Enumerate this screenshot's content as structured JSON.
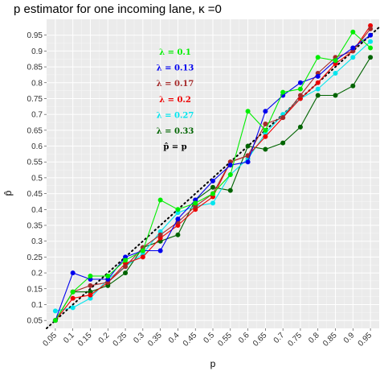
{
  "chart_data": {
    "type": "line",
    "title": "p estimator for one incoming lane, κ =0",
    "xlabel": "p",
    "ylabel": "p̂",
    "xlim": [
      0.025,
      0.975
    ],
    "ylim": [
      0.025,
      1.0
    ],
    "x_ticks": [
      0.05,
      0.1,
      0.15,
      0.2,
      0.25,
      0.3,
      0.35,
      0.4,
      0.45,
      0.5,
      0.55,
      0.6,
      0.65,
      0.7,
      0.75,
      0.8,
      0.85,
      0.9,
      0.95
    ],
    "x_tick_labels": [
      "0.05",
      "0.1",
      "0.15",
      "0.2",
      "0.25",
      "0.3",
      "0.35",
      "0.4",
      "0.45",
      "0.5",
      "0.55",
      "0.6",
      "0.65",
      "0.7",
      "0.75",
      "0.8",
      "0.85",
      "0.9",
      "0.95"
    ],
    "y_ticks": [
      0.05,
      0.1,
      0.15,
      0.2,
      0.25,
      0.3,
      0.35,
      0.4,
      0.45,
      0.5,
      0.55,
      0.6,
      0.65,
      0.7,
      0.75,
      0.8,
      0.85,
      0.9,
      0.95
    ],
    "y_tick_labels": [
      "0.05",
      "0.1",
      "0.15",
      "0.2",
      "0.25",
      "0.3",
      "0.35",
      "0.4",
      "0.45",
      "0.5",
      "0.55",
      "0.6",
      "0.65",
      "0.7",
      "0.75",
      "0.8",
      "0.85",
      "0.9",
      "0.95"
    ],
    "grid": true,
    "legend_placement": "top-center",
    "x": [
      0.05,
      0.1,
      0.15,
      0.2,
      0.25,
      0.3,
      0.35,
      0.4,
      0.45,
      0.5,
      0.55,
      0.6,
      0.65,
      0.7,
      0.75,
      0.8,
      0.85,
      0.9,
      0.95
    ],
    "series": [
      {
        "name": "λ = 0.33",
        "color": "#006400",
        "values": [
          0.05,
          0.14,
          0.14,
          0.16,
          0.2,
          0.28,
          0.3,
          0.32,
          0.43,
          0.47,
          0.46,
          0.6,
          0.59,
          0.61,
          0.66,
          0.76,
          0.76,
          0.79,
          0.88
        ]
      },
      {
        "name": "λ = 0.27",
        "color": "#00e5ee",
        "values": [
          0.08,
          0.09,
          0.12,
          0.18,
          0.22,
          0.26,
          0.33,
          0.39,
          0.41,
          0.42,
          0.51,
          0.56,
          0.64,
          0.7,
          0.75,
          0.78,
          0.83,
          0.88,
          0.93
        ]
      },
      {
        "name": "λ = 0.2",
        "color": "#ee0000",
        "values": [
          0.05,
          0.12,
          0.13,
          0.17,
          0.23,
          0.25,
          0.31,
          0.35,
          0.4,
          0.44,
          0.55,
          0.57,
          0.63,
          0.69,
          0.75,
          0.8,
          0.86,
          0.9,
          0.98
        ]
      },
      {
        "name": "λ = 0.17",
        "color": "#a52a2a",
        "values": [
          0.05,
          0.14,
          0.16,
          0.17,
          0.22,
          0.28,
          0.32,
          0.36,
          0.41,
          0.45,
          0.55,
          0.57,
          0.67,
          0.69,
          0.76,
          0.83,
          0.88,
          0.9,
          0.97
        ]
      },
      {
        "name": "λ = 0.13",
        "color": "#0000ee",
        "values": [
          0.05,
          0.2,
          0.18,
          0.18,
          0.25,
          0.27,
          0.27,
          0.37,
          0.43,
          0.49,
          0.54,
          0.55,
          0.71,
          0.76,
          0.8,
          0.82,
          0.87,
          0.91,
          0.95
        ]
      },
      {
        "name": "λ = 0.1",
        "color": "#00ee00",
        "values": [
          0.05,
          0.14,
          0.19,
          0.19,
          0.24,
          0.27,
          0.43,
          0.4,
          0.42,
          0.45,
          0.51,
          0.71,
          0.65,
          0.77,
          0.78,
          0.88,
          0.87,
          0.96,
          0.91
        ]
      }
    ],
    "reference_line": {
      "label": "p̂ = p",
      "style": "dotted",
      "color": "#000000"
    }
  }
}
